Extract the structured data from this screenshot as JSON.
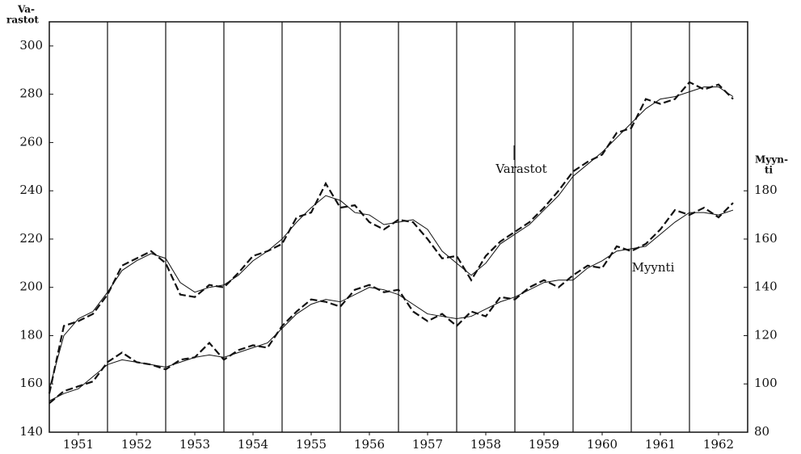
{
  "chart_data": {
    "type": "line",
    "ylabel": [
      "Va-",
      "rastot"
    ],
    "y2label": [
      "Myyn-",
      "ti"
    ],
    "x": [
      1951.0,
      1951.25,
      1951.5,
      1951.75,
      1952.0,
      1952.25,
      1952.5,
      1952.75,
      1953.0,
      1953.25,
      1953.5,
      1953.75,
      1954.0,
      1954.25,
      1954.5,
      1954.75,
      1955.0,
      1955.25,
      1955.5,
      1955.75,
      1956.0,
      1956.25,
      1956.5,
      1956.75,
      1957.0,
      1957.25,
      1957.5,
      1957.75,
      1958.0,
      1958.25,
      1958.5,
      1958.75,
      1959.0,
      1959.25,
      1959.5,
      1959.75,
      1960.0,
      1960.25,
      1960.5,
      1960.75,
      1961.0,
      1961.25,
      1961.5,
      1961.75,
      1962.0,
      1962.25,
      1962.5,
      1962.75
    ],
    "series": [
      {
        "name": "Varastot",
        "color": "#111111",
        "values": [
          156,
          184,
          186,
          189,
          197,
          209,
          212,
          215,
          210,
          197,
          196,
          201,
          200,
          206,
          213,
          215,
          218,
          229,
          231,
          243,
          233,
          234,
          227,
          224,
          228,
          227,
          220,
          212,
          213,
          203,
          213,
          219,
          223,
          227,
          233,
          240,
          248,
          252,
          255,
          264,
          266,
          278,
          276,
          278,
          285,
          282,
          284,
          278
        ],
        "trend": [
          158,
          180,
          187,
          190,
          198,
          207,
          211,
          214,
          212,
          202,
          198,
          200,
          201,
          205,
          211,
          215,
          220,
          227,
          233,
          238,
          236,
          231,
          230,
          226,
          227,
          228,
          224,
          215,
          210,
          205,
          210,
          218,
          222,
          226,
          232,
          238,
          246,
          251,
          256,
          262,
          268,
          274,
          278,
          279,
          281,
          283,
          283,
          279
        ]
      },
      {
        "name": "Myynti",
        "color": "#111111",
        "axis": "y2",
        "values": [
          92,
          97,
          99,
          101,
          109,
          113,
          109,
          108,
          106,
          110,
          111,
          117,
          110,
          114,
          116,
          115,
          124,
          130,
          135,
          134,
          132,
          139,
          141,
          138,
          139,
          130,
          126,
          129,
          124,
          130,
          128,
          136,
          135,
          140,
          143,
          140,
          145,
          149,
          148,
          157,
          155,
          158,
          164,
          172,
          170,
          173,
          169,
          175
        ],
        "trend": [
          93,
          96,
          98,
          103,
          108,
          110,
          109,
          108,
          107,
          109,
          111,
          112,
          111,
          113,
          115,
          117,
          123,
          129,
          133,
          135,
          134,
          137,
          140,
          139,
          137,
          133,
          129,
          128,
          127,
          128,
          131,
          134,
          136,
          139,
          142,
          143,
          143,
          148,
          151,
          155,
          156,
          157,
          162,
          167,
          171,
          171,
          170,
          172
        ]
      }
    ],
    "xlim": [
      1951,
      1963
    ],
    "xticks": [
      {
        "value": 1951.5,
        "label": "1951"
      },
      {
        "value": 1952.5,
        "label": "1952"
      },
      {
        "value": 1953.5,
        "label": "1953"
      },
      {
        "value": 1954.5,
        "label": "1954"
      },
      {
        "value": 1955.5,
        "label": "1955"
      },
      {
        "value": 1956.5,
        "label": "1956"
      },
      {
        "value": 1957.5,
        "label": "1957"
      },
      {
        "value": 1958.5,
        "label": "1958"
      },
      {
        "value": 1959.5,
        "label": "1959"
      },
      {
        "value": 1960.5,
        "label": "1960"
      },
      {
        "value": 1961.5,
        "label": "1961"
      },
      {
        "value": 1962.5,
        "label": "1962"
      }
    ],
    "xgrid": [
      1952,
      1953,
      1954,
      1955,
      1956,
      1957,
      1958,
      1959,
      1960,
      1961,
      1962
    ],
    "ylim": [
      140,
      310
    ],
    "yticks": [
      140,
      160,
      180,
      200,
      220,
      240,
      260,
      280,
      300
    ],
    "y2lim": [
      80,
      250
    ],
    "y2ticks": [
      80,
      100,
      120,
      140,
      160,
      180
    ]
  }
}
